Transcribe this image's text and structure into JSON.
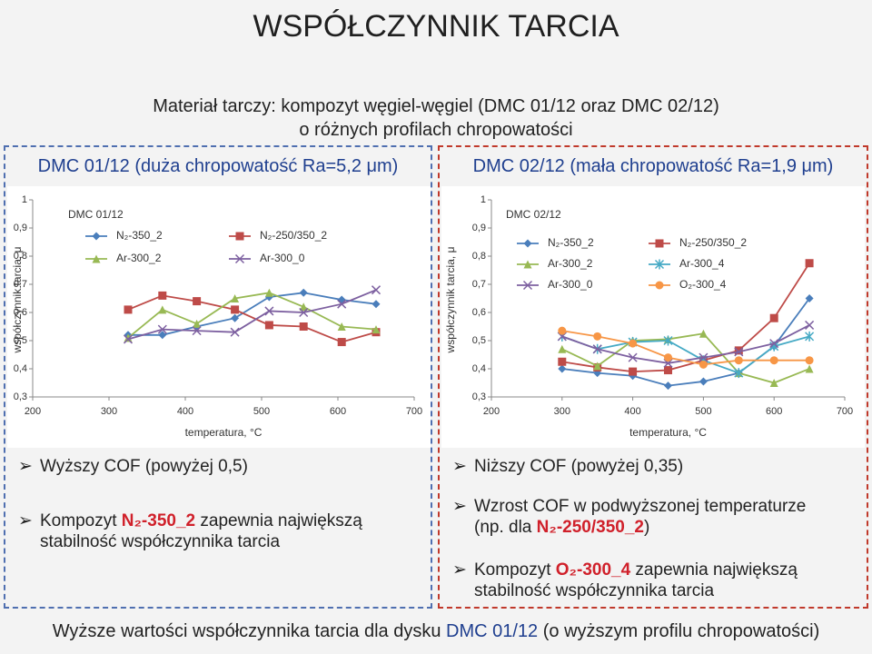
{
  "title": "WSPÓŁCZYNNIK TARCIA",
  "subtitle": [
    "Materiał tarczy: kompozyt węgiel-węgiel (DMC 01/12 oraz DMC 02/12)",
    "o różnych profilach chropowatości"
  ],
  "panels": [
    {
      "heading": "DMC 01/12 (duża chropowatość Ra=5,2 μm)",
      "bullets": [
        {
          "lines": [
            [
              {
                "text": "Wyższy COF (powyżej 0,5)"
              }
            ]
          ]
        },
        {
          "lines": [
            [
              {
                "text": "Kompozyt "
              },
              {
                "text": "N₂-350_2",
                "emphasis": true
              },
              {
                "text": " zapewnia największą"
              }
            ],
            [
              {
                "text": "stabilność współczynnika tarcia"
              }
            ]
          ]
        }
      ]
    },
    {
      "heading": "DMC 02/12 (mała chropowatość Ra=1,9 μm)",
      "bullets": [
        {
          "lines": [
            [
              {
                "text": "Niższy COF (powyżej 0,35)"
              }
            ]
          ]
        },
        {
          "lines": [
            [
              {
                "text": "Wzrost COF w podwyższonej temperaturze"
              }
            ],
            [
              {
                "text": "(np. dla "
              },
              {
                "text": "N₂-250/350_2",
                "emphasis": true
              },
              {
                "text": ")"
              }
            ]
          ]
        },
        {
          "lines": [
            [
              {
                "text": "Kompozyt "
              },
              {
                "text": "O₂-300_4",
                "emphasis": true
              },
              {
                "text": " zapewnia największą"
              }
            ],
            [
              {
                "text": "stabilność współczynnika tarcia"
              }
            ]
          ]
        }
      ]
    }
  ],
  "footer": [
    {
      "text": "Wyższe wartości współczynnika tarcia dla dysku "
    },
    {
      "text": "DMC 01/12",
      "emphasis": true
    },
    {
      "text": " (o wyższym profilu chropowatości)"
    }
  ],
  "chart_data": [
    {
      "type": "line",
      "title": "DMC 01/12",
      "x_label": "temperatura, °C",
      "y_label": "współczynnik tarcia, μ",
      "x": [
        325,
        370,
        415,
        465,
        510,
        555,
        605,
        650
      ],
      "xlim": [
        200,
        700
      ],
      "xticks": [
        200,
        300,
        400,
        500,
        600,
        700
      ],
      "ylim": [
        0.3,
        1
      ],
      "yticks": [
        {
          "value": 0.3,
          "label": "0,3"
        },
        {
          "value": 0.4,
          "label": "0,4"
        },
        {
          "value": 0.5,
          "label": "0,5"
        },
        {
          "value": 0.6,
          "label": "0,6"
        },
        {
          "value": 0.7,
          "label": "0,7"
        },
        {
          "value": 0.8,
          "label": "0,8"
        },
        {
          "value": 0.9,
          "label": "0,9"
        },
        1
      ],
      "grid": false,
      "series": [
        {
          "name": "N₂-350_2",
          "color": "#4a7ebb",
          "marker": "diamond",
          "values": [
            0.52,
            0.52,
            0.55,
            0.58,
            0.655,
            0.67,
            0.645,
            0.63
          ]
        },
        {
          "name": "N₂-250/350_2",
          "color": "#be4b48",
          "marker": "square",
          "values": [
            0.61,
            0.66,
            0.64,
            0.61,
            0.555,
            0.55,
            0.495,
            0.53
          ]
        },
        {
          "name": "Ar-300_2",
          "color": "#98b954",
          "marker": "triangle",
          "values": [
            0.51,
            0.61,
            0.56,
            0.65,
            0.67,
            0.62,
            0.55,
            0.54
          ]
        },
        {
          "name": "Ar-300_0",
          "color": "#7d60a0",
          "marker": "x",
          "values": [
            0.505,
            0.54,
            0.535,
            0.53,
            0.605,
            0.6,
            0.63,
            0.68
          ]
        }
      ]
    },
    {
      "type": "line",
      "title": "DMC 02/12",
      "x_label": "temperatura, °C",
      "y_label": "współczynnik tarcia, μ",
      "x": [
        300,
        350,
        400,
        450,
        500,
        550,
        600,
        650
      ],
      "xlim": [
        200,
        700
      ],
      "xticks": [
        200,
        300,
        400,
        500,
        600,
        700
      ],
      "ylim": [
        0.3,
        1
      ],
      "yticks": [
        {
          "value": 0.3,
          "label": "0,3"
        },
        {
          "value": 0.4,
          "label": "0,4"
        },
        {
          "value": 0.5,
          "label": "0,5"
        },
        {
          "value": 0.6,
          "label": "0,6"
        },
        {
          "value": 0.7,
          "label": "0,7"
        },
        {
          "value": 0.8,
          "label": "0,8"
        },
        {
          "value": 0.9,
          "label": "0,9"
        },
        1
      ],
      "grid": false,
      "series": [
        {
          "name": "N₂-350_2",
          "color": "#4a7ebb",
          "marker": "diamond",
          "values": [
            0.4,
            0.385,
            0.375,
            0.34,
            0.355,
            0.385,
            0.48,
            0.65
          ]
        },
        {
          "name": "N₂-250/350_2",
          "color": "#be4b48",
          "marker": "square",
          "values": [
            0.425,
            0.405,
            0.39,
            0.395,
            0.43,
            0.465,
            0.58,
            0.775
          ]
        },
        {
          "name": "Ar-300_2",
          "color": "#98b954",
          "marker": "triangle",
          "values": [
            0.47,
            0.41,
            0.5,
            0.505,
            0.525,
            0.385,
            0.35,
            0.4
          ]
        },
        {
          "name": "Ar-300_4",
          "color": "#46aac5",
          "marker": "asterisk",
          "values": [
            0.515,
            0.47,
            0.495,
            0.5,
            0.43,
            0.385,
            0.48,
            0.515
          ]
        },
        {
          "name": "Ar-300_0",
          "color": "#7d60a0",
          "marker": "x",
          "values": [
            0.515,
            0.47,
            0.44,
            0.42,
            0.44,
            0.46,
            0.49,
            0.555
          ]
        },
        {
          "name": "O₂-300_4",
          "color": "#f79646",
          "marker": "circle",
          "values": [
            0.535,
            0.515,
            0.49,
            0.44,
            0.415,
            0.43,
            0.43,
            0.43
          ]
        }
      ]
    }
  ]
}
